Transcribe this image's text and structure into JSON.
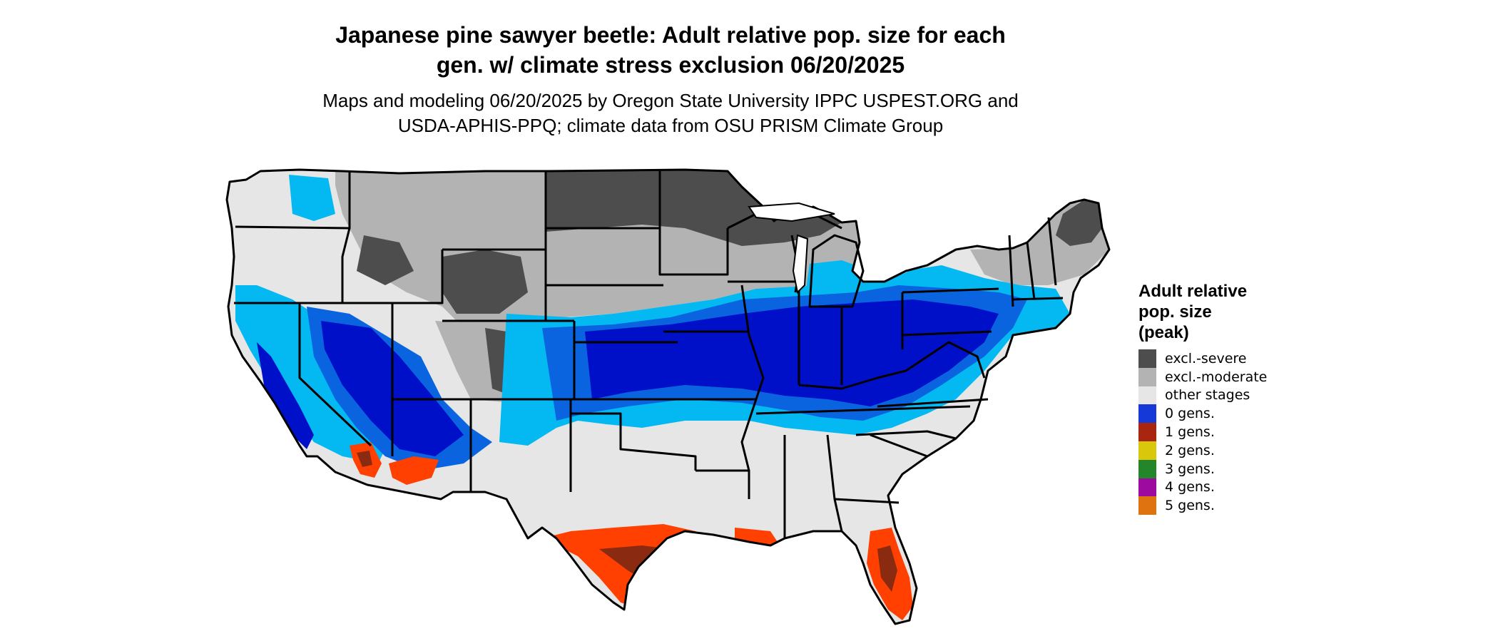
{
  "title": {
    "line1": "Japanese pine sawyer beetle: Adult relative pop. size for each",
    "line2": "gen. w/ climate stress exclusion 06/20/2025"
  },
  "subtitle": {
    "line1": "Maps and modeling 06/20/2025 by Oregon State University IPPC USPEST.ORG and",
    "line2": "USDA-APHIS-PPQ; climate data from OSU PRISM Climate Group"
  },
  "legend": {
    "title_line1": "Adult relative",
    "title_line2": "pop. size",
    "title_line3": "(peak)",
    "items": [
      {
        "label": "excl.-severe",
        "color": "#4d4d4d"
      },
      {
        "label": "excl.-moderate",
        "color": "#b3b3b3"
      },
      {
        "label": "other stages",
        "color": "#e6e6e6"
      },
      {
        "label": "0 gens.",
        "color": "#1538d8"
      },
      {
        "label": "1 gens.",
        "color": "#a8250f"
      },
      {
        "label": "2 gens.",
        "color": "#d8c70b"
      },
      {
        "label": "3 gens.",
        "color": "#24862a"
      },
      {
        "label": "4 gens.",
        "color": "#9c0aa0"
      },
      {
        "label": "5 gens.",
        "color": "#de7310"
      }
    ]
  },
  "map_colors": {
    "light_blue": "#04b9f2",
    "medium_blue": "#0a64e0",
    "dark_blue": "#0010c8",
    "orange_red": "#ff4000",
    "dark_red": "#8a2a10",
    "border": "#000000"
  }
}
